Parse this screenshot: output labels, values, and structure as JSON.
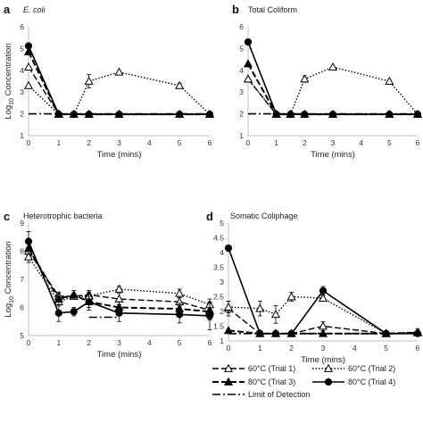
{
  "chart_data": [
    {
      "panel": "a",
      "type": "line",
      "title": "E. coli",
      "title_italic": true,
      "xlabel": "Time (mins)",
      "ylabel": "Log10 Concentration",
      "xlim": [
        0,
        6
      ],
      "ylim": [
        1,
        6
      ],
      "xticks": [
        0,
        1,
        2,
        3,
        4,
        5,
        6
      ],
      "yticks": [
        1,
        2,
        3,
        4,
        5,
        6
      ],
      "series": [
        {
          "key": "t1",
          "x": [
            0,
            1,
            1.5,
            2,
            3,
            5,
            6
          ],
          "y": [
            4.15,
            2.0,
            1.98,
            1.98,
            1.98,
            1.98,
            1.98
          ],
          "err": [
            0,
            0,
            0,
            0,
            0,
            0,
            0
          ]
        },
        {
          "key": "t2",
          "x": [
            0,
            1,
            1.5,
            2,
            3,
            5,
            6
          ],
          "y": [
            3.3,
            1.98,
            1.98,
            3.5,
            3.92,
            3.3,
            1.98
          ],
          "err": [
            0,
            0,
            0,
            0.3,
            0,
            0.1,
            0
          ]
        },
        {
          "key": "t3",
          "x": [
            0,
            1,
            1.5,
            2,
            3,
            5,
            6
          ],
          "y": [
            4.85,
            1.98,
            1.98,
            1.98,
            1.98,
            1.98,
            1.98
          ],
          "err": [
            0,
            0,
            0,
            0,
            0,
            0,
            0
          ]
        },
        {
          "key": "t4",
          "x": [
            0,
            1,
            1.5,
            2,
            3,
            5,
            6
          ],
          "y": [
            5.12,
            1.98,
            1.98,
            1.98,
            1.98,
            1.98,
            1.98
          ],
          "err": [
            0,
            0,
            0,
            0,
            0,
            0,
            0
          ]
        },
        {
          "key": "lod",
          "x": [
            0,
            6
          ],
          "y": [
            2.0,
            2.0
          ]
        }
      ]
    },
    {
      "panel": "b",
      "type": "line",
      "title": "Total Coliform",
      "title_italic": false,
      "xlabel": "Time (mins)",
      "ylabel": "",
      "xlim": [
        0,
        6
      ],
      "ylim": [
        1,
        6
      ],
      "xticks": [
        0,
        1,
        2,
        3,
        4,
        5,
        6
      ],
      "yticks": [
        1,
        2,
        3,
        4,
        5,
        6
      ],
      "series": [
        {
          "key": "t1",
          "x": [
            0,
            1,
            1.5,
            2,
            3,
            5,
            6
          ],
          "y": [
            3.6,
            1.98,
            1.98,
            1.98,
            1.98,
            1.98,
            1.98
          ],
          "err": [
            0,
            0,
            0,
            0,
            0,
            0,
            0
          ]
        },
        {
          "key": "t2",
          "x": [
            0,
            1,
            1.5,
            2,
            3,
            5,
            6
          ],
          "y": [
            3.6,
            1.98,
            1.98,
            3.6,
            4.15,
            3.5,
            1.98
          ],
          "err": [
            0,
            0,
            0,
            0.15,
            0,
            0.05,
            0
          ]
        },
        {
          "key": "t3",
          "x": [
            0,
            1,
            1.5,
            2,
            3,
            5,
            6
          ],
          "y": [
            4.3,
            1.98,
            1.98,
            1.98,
            1.98,
            1.98,
            1.98
          ],
          "err": [
            0,
            0,
            0,
            0,
            0,
            0,
            0
          ]
        },
        {
          "key": "t4",
          "x": [
            0,
            1,
            1.5,
            2,
            3,
            5,
            6
          ],
          "y": [
            5.3,
            1.98,
            1.98,
            1.98,
            1.98,
            1.98,
            1.98
          ],
          "err": [
            0,
            0,
            0,
            0,
            0,
            0,
            0
          ]
        },
        {
          "key": "lod",
          "x": [
            0,
            6
          ],
          "y": [
            2.0,
            2.0
          ]
        }
      ]
    },
    {
      "panel": "c",
      "type": "line",
      "title": "Heterotrophic bacteria",
      "title_italic": false,
      "xlabel": "Time (mins)",
      "ylabel": "Log10 Concentration",
      "xlim": [
        0,
        6
      ],
      "ylim": [
        5,
        9
      ],
      "xticks": [
        0,
        1,
        2,
        3,
        4,
        5,
        6
      ],
      "yticks": [
        5,
        6,
        7,
        8,
        9
      ],
      "series": [
        {
          "key": "t1",
          "x": [
            0,
            1,
            1.5,
            2,
            3,
            5,
            6
          ],
          "y": [
            8.0,
            6.4,
            6.4,
            6.45,
            6.3,
            6.2,
            5.9
          ],
          "err": [
            0.15,
            0.15,
            0.1,
            0.15,
            0.2,
            0.15,
            0.2
          ]
        },
        {
          "key": "t2",
          "x": [
            0,
            1,
            1.5,
            2,
            3,
            5,
            6
          ],
          "y": [
            7.8,
            6.2,
            6.4,
            6.4,
            6.65,
            6.5,
            6.1
          ],
          "err": [
            0.2,
            0.15,
            0.1,
            0.15,
            0.1,
            0.15,
            0.2
          ]
        },
        {
          "key": "t3",
          "x": [
            0,
            1,
            1.5,
            2,
            3,
            5,
            6
          ],
          "y": [
            8.1,
            6.3,
            6.45,
            6.2,
            6.0,
            5.95,
            5.85
          ],
          "err": [
            0.2,
            0.2,
            0.15,
            0.2,
            0.2,
            0.2,
            0.3
          ]
        },
        {
          "key": "t4",
          "x": [
            0,
            1,
            1.5,
            2,
            3,
            5,
            6
          ],
          "y": [
            8.35,
            5.8,
            5.85,
            6.2,
            5.8,
            5.75,
            5.7
          ],
          "err": [
            0.35,
            0.3,
            0.15,
            0.3,
            0.3,
            0.3,
            0.5
          ]
        },
        {
          "key": "lod",
          "x": [
            2,
            3
          ],
          "y": [
            5.65,
            5.65
          ]
        }
      ]
    },
    {
      "panel": "d",
      "type": "line",
      "title": "Somatic Coliphage",
      "title_italic": false,
      "xlabel": "Time (mins)",
      "ylabel": "",
      "xlim": [
        0,
        6
      ],
      "ylim": [
        1,
        5
      ],
      "xticks": [
        0,
        1,
        2,
        3,
        4,
        5,
        6
      ],
      "yticks": [
        1,
        1.5,
        2,
        2.5,
        3,
        3.5,
        4,
        4.5,
        5
      ],
      "series": [
        {
          "key": "t1",
          "x": [
            0,
            1,
            1.5,
            2,
            3,
            5,
            6
          ],
          "y": [
            2.1,
            1.25,
            1.25,
            1.25,
            1.5,
            1.25,
            1.28
          ],
          "err": [
            0.25,
            0,
            0,
            0,
            0.15,
            0,
            0.05
          ]
        },
        {
          "key": "t2",
          "x": [
            0,
            1,
            1.5,
            2,
            3,
            5,
            6
          ],
          "y": [
            2.15,
            2.1,
            1.9,
            2.5,
            2.45,
            1.25,
            1.3
          ],
          "err": [
            0.2,
            0.25,
            0.3,
            0.15,
            0.1,
            0,
            0.1
          ]
        },
        {
          "key": "t3",
          "x": [
            0,
            1,
            1.5,
            2,
            3,
            5,
            6
          ],
          "y": [
            1.35,
            1.25,
            1.25,
            1.25,
            1.25,
            1.25,
            1.28
          ],
          "err": [
            0,
            0,
            0,
            0,
            0,
            0,
            0
          ]
        },
        {
          "key": "t4",
          "x": [
            0,
            1,
            1.5,
            2,
            3,
            5,
            6
          ],
          "y": [
            4.15,
            1.25,
            1.25,
            1.25,
            2.7,
            1.25,
            1.25
          ],
          "err": [
            0,
            0,
            0,
            0,
            0.15,
            0,
            0
          ]
        },
        {
          "key": "lod",
          "x": [
            0,
            6
          ],
          "y": [
            1.25,
            1.25
          ]
        }
      ]
    }
  ],
  "legend": {
    "placement": "bottom-right",
    "entries": [
      {
        "key": "t1",
        "label": "60°C (Trial 1)"
      },
      {
        "key": "t2",
        "label": "60°C (Trial 2)"
      },
      {
        "key": "t3",
        "label": "80°C (Trial 3)"
      },
      {
        "key": "t4",
        "label": "80°C (Trial 4)"
      },
      {
        "key": "lod",
        "label": "Limit of Detection"
      }
    ]
  },
  "styles": {
    "line_color": "#000000",
    "axis_color": "#bfbfbf",
    "t1": {
      "dash": "7,3",
      "marker": "triangle-open",
      "width": 1.4
    },
    "t2": {
      "dash": "1.5,2",
      "marker": "triangle-open",
      "width": 1.4
    },
    "t3": {
      "dash": "7,3",
      "marker": "triangle-filled",
      "width": 2.0
    },
    "t4": {
      "dash": "",
      "marker": "circle-filled",
      "width": 1.6
    },
    "lod": {
      "dash": "9,3,2,3",
      "marker": "none",
      "width": 1.6
    }
  }
}
